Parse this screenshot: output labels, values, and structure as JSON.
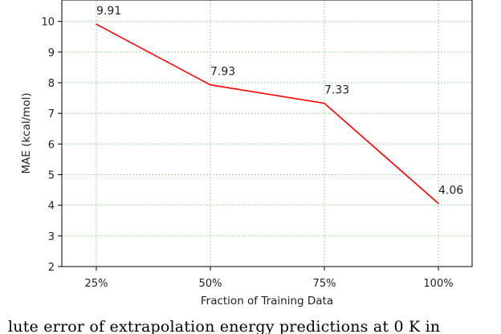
{
  "chart_data": {
    "type": "line",
    "categories": [
      "25%",
      "50%",
      "75%",
      "100%"
    ],
    "series": [
      {
        "values": [
          9.91,
          7.93,
          7.33,
          4.06
        ],
        "color": "#ff0000"
      }
    ],
    "data_labels": [
      "9.91",
      "7.93",
      "7.33",
      "4.06"
    ],
    "xlabel": "Fraction of Training Data",
    "ylabel": "MAE (kcal/mol)",
    "ylim": [
      2,
      10.7
    ],
    "yticks": [
      2,
      3,
      4,
      5,
      6,
      7,
      8,
      9,
      10
    ],
    "grid": true,
    "grid_color": "#9fd69f",
    "grid_style": "dotted"
  },
  "caption": "lute error of extrapolation energy predictions at 0 K in"
}
